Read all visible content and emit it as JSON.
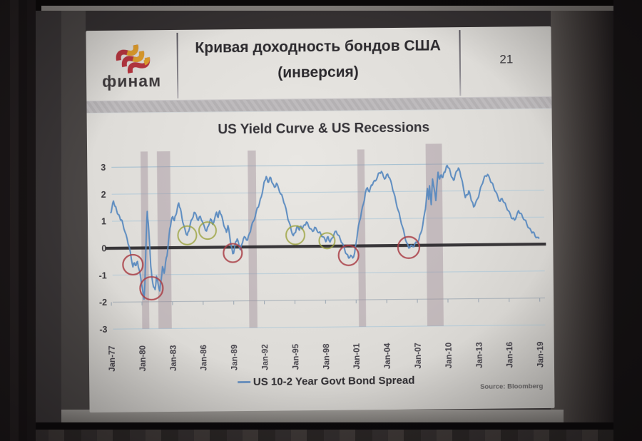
{
  "slide": {
    "logo_text": "финам",
    "title_line1": "Кривая доходность бондов США",
    "title_line2": "(инверсия)",
    "page_number": "21",
    "chart_title": "US Yield Curve & US Recessions",
    "legend_label": "US 10-2 Year Govt Bond Spread",
    "source": "Source:  Bloomberg"
  },
  "colors": {
    "line": "#5688bf",
    "grid": "#a9c6d8",
    "grid_top": "#8fb4cc",
    "axis": "#98a4b0",
    "recession_band": "#a08f98",
    "zero_line": "#2b292c",
    "inversion_circle": "#a93d45",
    "near_zero_circle": "#9aa13b",
    "tick_text": "#45424a",
    "logo_red": "#b5353f",
    "logo_amber": "#dd9c2b"
  },
  "chart_data": {
    "type": "line",
    "title": "US Yield Curve & US Recessions",
    "xlabel": "",
    "ylabel": "",
    "x_range": [
      1976.7,
      2019.6
    ],
    "y_range": [
      -3.3,
      3.7
    ],
    "grid": true,
    "legend_position": "bottom",
    "x_tick_labels": [
      "Jan-77",
      "Jan-80",
      "Jan-83",
      "Jan-86",
      "Jan-89",
      "Jan-92",
      "Jan-95",
      "Jan-98",
      "Jan-01",
      "Jan-04",
      "Jan-07",
      "Jan-10",
      "Jan-13",
      "Jan-16",
      "Jan-19"
    ],
    "x_tick_years": [
      1977,
      1980,
      1983,
      1986,
      1989,
      1992,
      1995,
      1998,
      2001,
      2004,
      2007,
      2010,
      2013,
      2016,
      2019
    ],
    "y_ticks": [
      3,
      2,
      1,
      0,
      -1,
      -2,
      -3
    ],
    "zero_line_value": 0,
    "recession_bands": [
      {
        "from": 1980.0,
        "to": 1980.7
      },
      {
        "from": 1981.6,
        "to": 1982.9
      },
      {
        "from": 1990.5,
        "to": 1991.3
      },
      {
        "from": 2001.25,
        "to": 2001.95
      },
      {
        "from": 2007.95,
        "to": 2009.55
      }
    ],
    "annotations": {
      "inversion_circles": [
        [
          1979.15,
          -0.62
        ],
        [
          1980.95,
          -1.5
        ],
        [
          1988.95,
          -0.22
        ],
        [
          2000.3,
          -0.35
        ],
        [
          2006.2,
          -0.08
        ]
      ],
      "near_zero_circles": [
        [
          1984.5,
          0.45
        ],
        [
          1986.5,
          0.62
        ],
        [
          1995.1,
          0.42
        ],
        [
          1998.2,
          0.2
        ]
      ]
    },
    "series": [
      {
        "name": "US 10-2 Year Govt Bond Spread",
        "points": [
          [
            1977.0,
            1.3
          ],
          [
            1977.15,
            1.5
          ],
          [
            1977.3,
            1.75
          ],
          [
            1977.45,
            1.55
          ],
          [
            1977.6,
            1.4
          ],
          [
            1977.75,
            1.25
          ],
          [
            1977.9,
            1.15
          ],
          [
            1978.05,
            1.05
          ],
          [
            1978.2,
            0.9
          ],
          [
            1978.4,
            0.6
          ],
          [
            1978.6,
            0.35
          ],
          [
            1978.8,
            0.05
          ],
          [
            1979.0,
            -0.4
          ],
          [
            1979.15,
            -0.7
          ],
          [
            1979.3,
            -0.55
          ],
          [
            1979.45,
            -0.65
          ],
          [
            1979.6,
            -0.5
          ],
          [
            1979.75,
            -0.8
          ],
          [
            1979.9,
            -1.1
          ],
          [
            1980.05,
            -1.5
          ],
          [
            1980.2,
            -1.9
          ],
          [
            1980.3,
            -1.35
          ],
          [
            1980.4,
            -0.4
          ],
          [
            1980.5,
            0.6
          ],
          [
            1980.6,
            1.35
          ],
          [
            1980.7,
            0.9
          ],
          [
            1980.8,
            0.2
          ],
          [
            1980.9,
            -0.7
          ],
          [
            1981.0,
            -1.1
          ],
          [
            1981.15,
            -1.45
          ],
          [
            1981.3,
            -1.55
          ],
          [
            1981.45,
            -1.05
          ],
          [
            1981.6,
            -1.35
          ],
          [
            1981.75,
            -1.6
          ],
          [
            1981.9,
            -1.2
          ],
          [
            1982.05,
            -0.7
          ],
          [
            1982.2,
            -0.95
          ],
          [
            1982.35,
            -0.55
          ],
          [
            1982.5,
            -0.3
          ],
          [
            1982.65,
            0.2
          ],
          [
            1982.8,
            0.7
          ],
          [
            1982.95,
            1.0
          ],
          [
            1983.1,
            1.15
          ],
          [
            1983.25,
            1.0
          ],
          [
            1983.4,
            1.2
          ],
          [
            1983.55,
            1.45
          ],
          [
            1983.7,
            1.65
          ],
          [
            1983.85,
            1.45
          ],
          [
            1984.0,
            1.1
          ],
          [
            1984.15,
            0.85
          ],
          [
            1984.3,
            0.65
          ],
          [
            1984.5,
            0.45
          ],
          [
            1984.65,
            0.6
          ],
          [
            1984.8,
            0.85
          ],
          [
            1985.0,
            1.05
          ],
          [
            1985.2,
            1.3
          ],
          [
            1985.4,
            1.2
          ],
          [
            1985.6,
            1.0
          ],
          [
            1985.8,
            1.15
          ],
          [
            1986.0,
            0.95
          ],
          [
            1986.2,
            0.75
          ],
          [
            1986.4,
            0.6
          ],
          [
            1986.6,
            0.8
          ],
          [
            1986.8,
            1.05
          ],
          [
            1987.0,
            0.85
          ],
          [
            1987.2,
            1.05
          ],
          [
            1987.4,
            1.3
          ],
          [
            1987.55,
            1.1
          ],
          [
            1987.7,
            1.35
          ],
          [
            1987.85,
            1.2
          ],
          [
            1988.0,
            1.0
          ],
          [
            1988.2,
            0.7
          ],
          [
            1988.35,
            0.55
          ],
          [
            1988.5,
            0.8
          ],
          [
            1988.65,
            0.45
          ],
          [
            1988.8,
            0.05
          ],
          [
            1988.95,
            -0.25
          ],
          [
            1989.1,
            -0.1
          ],
          [
            1989.25,
            0.2
          ],
          [
            1989.4,
            0.3
          ],
          [
            1989.55,
            0.1
          ],
          [
            1989.7,
            -0.1
          ],
          [
            1989.85,
            0.1
          ],
          [
            1990.0,
            0.3
          ],
          [
            1990.2,
            0.35
          ],
          [
            1990.4,
            0.25
          ],
          [
            1990.6,
            0.5
          ],
          [
            1990.8,
            0.75
          ],
          [
            1991.0,
            0.95
          ],
          [
            1991.2,
            1.15
          ],
          [
            1991.4,
            1.45
          ],
          [
            1991.6,
            1.6
          ],
          [
            1991.8,
            1.85
          ],
          [
            1992.0,
            2.2
          ],
          [
            1992.15,
            2.45
          ],
          [
            1992.3,
            2.6
          ],
          [
            1992.45,
            2.4
          ],
          [
            1992.6,
            2.5
          ],
          [
            1992.75,
            2.55
          ],
          [
            1992.9,
            2.35
          ],
          [
            1993.1,
            2.2
          ],
          [
            1993.3,
            2.35
          ],
          [
            1993.5,
            2.15
          ],
          [
            1993.7,
            1.95
          ],
          [
            1993.9,
            1.8
          ],
          [
            1994.1,
            1.55
          ],
          [
            1994.3,
            1.2
          ],
          [
            1994.5,
            0.9
          ],
          [
            1994.7,
            0.6
          ],
          [
            1994.9,
            0.4
          ],
          [
            1995.05,
            0.5
          ],
          [
            1995.2,
            0.65
          ],
          [
            1995.35,
            0.75
          ],
          [
            1995.5,
            0.6
          ],
          [
            1995.65,
            0.75
          ],
          [
            1995.8,
            0.65
          ],
          [
            1996.0,
            0.8
          ],
          [
            1996.2,
            0.9
          ],
          [
            1996.4,
            0.75
          ],
          [
            1996.6,
            0.65
          ],
          [
            1996.8,
            0.55
          ],
          [
            1997.0,
            0.7
          ],
          [
            1997.2,
            0.6
          ],
          [
            1997.4,
            0.5
          ],
          [
            1997.6,
            0.45
          ],
          [
            1997.8,
            0.35
          ],
          [
            1998.0,
            0.25
          ],
          [
            1998.15,
            0.2
          ],
          [
            1998.3,
            0.35
          ],
          [
            1998.5,
            0.15
          ],
          [
            1998.7,
            0.3
          ],
          [
            1998.9,
            0.45
          ],
          [
            1999.1,
            0.55
          ],
          [
            1999.3,
            0.4
          ],
          [
            1999.5,
            0.25
          ],
          [
            1999.7,
            0.1
          ],
          [
            1999.9,
            -0.1
          ],
          [
            2000.1,
            -0.3
          ],
          [
            2000.3,
            -0.45
          ],
          [
            2000.5,
            -0.35
          ],
          [
            2000.7,
            -0.45
          ],
          [
            2000.9,
            -0.25
          ],
          [
            2001.05,
            0.1
          ],
          [
            2001.2,
            0.5
          ],
          [
            2001.4,
            0.9
          ],
          [
            2001.6,
            1.25
          ],
          [
            2001.8,
            1.55
          ],
          [
            2002.0,
            1.95
          ],
          [
            2002.2,
            2.15
          ],
          [
            2002.4,
            2.0
          ],
          [
            2002.6,
            2.25
          ],
          [
            2002.8,
            2.35
          ],
          [
            2003.0,
            2.4
          ],
          [
            2003.2,
            2.55
          ],
          [
            2003.4,
            2.7
          ],
          [
            2003.6,
            2.75
          ],
          [
            2003.8,
            2.55
          ],
          [
            2004.0,
            2.5
          ],
          [
            2004.2,
            2.65
          ],
          [
            2004.4,
            2.5
          ],
          [
            2004.6,
            2.25
          ],
          [
            2004.8,
            1.95
          ],
          [
            2005.0,
            1.6
          ],
          [
            2005.2,
            1.3
          ],
          [
            2005.4,
            1.0
          ],
          [
            2005.6,
            0.7
          ],
          [
            2005.8,
            0.4
          ],
          [
            2006.0,
            0.1
          ],
          [
            2006.2,
            -0.1
          ],
          [
            2006.4,
            0.0
          ],
          [
            2006.6,
            -0.05
          ],
          [
            2006.8,
            0.05
          ],
          [
            2007.0,
            0.1
          ],
          [
            2007.2,
            0.2
          ],
          [
            2007.4,
            0.45
          ],
          [
            2007.6,
            0.75
          ],
          [
            2007.8,
            1.2
          ],
          [
            2007.95,
            1.6
          ],
          [
            2008.1,
            2.1
          ],
          [
            2008.2,
            1.7
          ],
          [
            2008.3,
            2.2
          ],
          [
            2008.45,
            1.5
          ],
          [
            2008.6,
            2.45
          ],
          [
            2008.75,
            2.1
          ],
          [
            2008.9,
            1.65
          ],
          [
            2009.0,
            2.1
          ],
          [
            2009.15,
            2.7
          ],
          [
            2009.3,
            2.45
          ],
          [
            2009.45,
            2.6
          ],
          [
            2009.6,
            2.5
          ],
          [
            2009.75,
            2.7
          ],
          [
            2009.9,
            2.8
          ],
          [
            2010.05,
            2.95
          ],
          [
            2010.2,
            2.85
          ],
          [
            2010.35,
            2.7
          ],
          [
            2010.5,
            2.5
          ],
          [
            2010.65,
            2.4
          ],
          [
            2010.8,
            2.55
          ],
          [
            2011.0,
            2.75
          ],
          [
            2011.15,
            2.85
          ],
          [
            2011.3,
            2.7
          ],
          [
            2011.45,
            2.45
          ],
          [
            2011.6,
            2.15
          ],
          [
            2011.8,
            1.75
          ],
          [
            2012.0,
            1.85
          ],
          [
            2012.15,
            2.0
          ],
          [
            2012.3,
            1.8
          ],
          [
            2012.45,
            1.6
          ],
          [
            2012.6,
            1.4
          ],
          [
            2012.8,
            1.55
          ],
          [
            2013.0,
            1.7
          ],
          [
            2013.2,
            1.95
          ],
          [
            2013.4,
            2.2
          ],
          [
            2013.6,
            2.4
          ],
          [
            2013.8,
            2.55
          ],
          [
            2014.0,
            2.6
          ],
          [
            2014.2,
            2.45
          ],
          [
            2014.4,
            2.3
          ],
          [
            2014.6,
            2.1
          ],
          [
            2014.8,
            1.95
          ],
          [
            2015.0,
            1.75
          ],
          [
            2015.2,
            1.6
          ],
          [
            2015.4,
            1.7
          ],
          [
            2015.6,
            1.55
          ],
          [
            2015.8,
            1.4
          ],
          [
            2016.0,
            1.25
          ],
          [
            2016.2,
            1.1
          ],
          [
            2016.4,
            0.95
          ],
          [
            2016.6,
            0.9
          ],
          [
            2016.8,
            1.05
          ],
          [
            2017.0,
            1.25
          ],
          [
            2017.2,
            1.15
          ],
          [
            2017.4,
            1.0
          ],
          [
            2017.6,
            0.9
          ],
          [
            2017.8,
            0.75
          ],
          [
            2018.0,
            0.6
          ],
          [
            2018.2,
            0.5
          ],
          [
            2018.4,
            0.45
          ],
          [
            2018.6,
            0.3
          ],
          [
            2018.8,
            0.25
          ],
          [
            2019.0,
            0.2
          ]
        ]
      }
    ]
  }
}
